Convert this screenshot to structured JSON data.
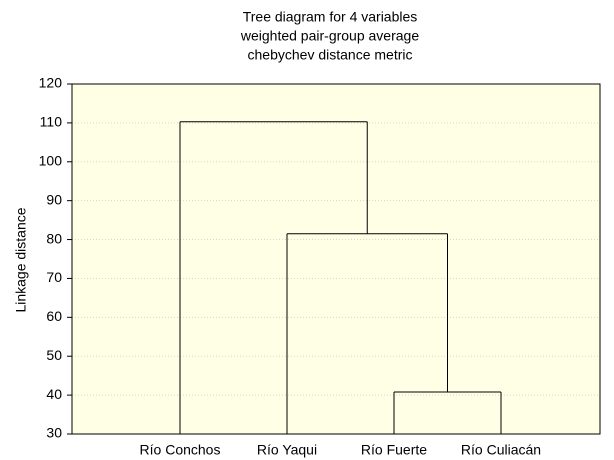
{
  "chart_data": {
    "type": "dendrogram",
    "title": [
      "Tree diagram for 4 variables",
      "weighted pair-group average",
      "chebychev distance metric"
    ],
    "ylabel": "Linkage distance",
    "categories": [
      "Río Conchos",
      "Río Yaqui",
      "Río Fuerte",
      "Río Culiacán"
    ],
    "merges": [
      {
        "children": [
          2,
          3
        ],
        "height": 40.8
      },
      {
        "children": [
          1,
          4
        ],
        "height": 81.5
      },
      {
        "children": [
          0,
          5
        ],
        "height": 110.3
      }
    ],
    "ylim": [
      30,
      120
    ],
    "yticks": [
      30,
      40,
      50,
      60,
      70,
      80,
      90,
      100,
      110,
      120
    ],
    "grid": true,
    "color": "#000000",
    "background": "#ffffe6"
  }
}
